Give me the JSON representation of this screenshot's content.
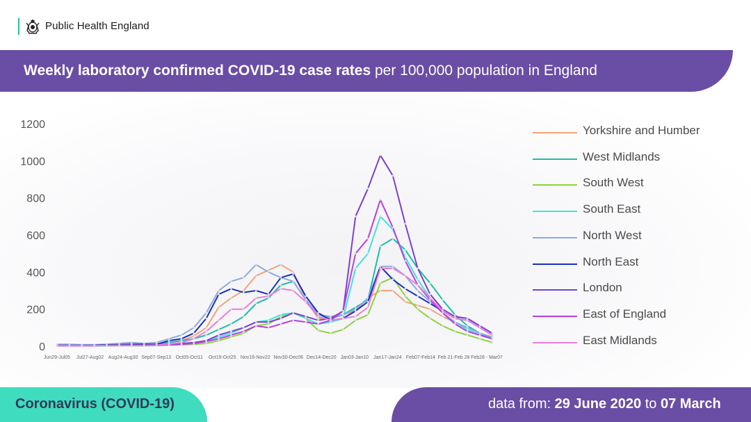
{
  "header": {
    "org_name": "Public Health England",
    "logo_icon": "royal-crest-icon",
    "accent_color": "#2bbfa0"
  },
  "title": {
    "bold": "Weekly laboratory confirmed COVID-19 case rates",
    "normal": "per 100,000 population in England",
    "band_color": "#6a4da5"
  },
  "chart_data": {
    "type": "line",
    "title": "Weekly laboratory confirmed COVID-19 case rates per 100,000 population in England",
    "xlabel": "",
    "ylabel": "",
    "ylim": [
      0,
      1200
    ],
    "y_ticks": [
      "0",
      "200",
      "400",
      "600",
      "800",
      "1000",
      "1200"
    ],
    "x_tick_labels": [
      "Jun29-Jul05",
      "Jul27-Aug02",
      "Aug24-Aug30",
      "Sep07-Sep13",
      "Oct05-Oct11",
      "Oct19-Oct25",
      "Nov16-Nov22",
      "Nov30-Dec06",
      "Dec14-Dec20",
      "Jan03-Jan10",
      "Jan17-Jan24",
      "Feb07-Feb14",
      "Feb 21-Feb 28",
      "Feb28 - Mar07"
    ],
    "grid": false,
    "legend_position": "right",
    "series": [
      {
        "name": "Yorkshire and Humber",
        "color": "#f2a27a",
        "values": [
          5,
          5,
          5,
          5,
          8,
          10,
          10,
          8,
          10,
          20,
          30,
          55,
          100,
          210,
          260,
          300,
          380,
          410,
          440,
          400,
          250,
          150,
          150,
          170,
          190,
          260,
          300,
          300,
          240,
          220,
          200,
          160,
          130,
          90,
          60,
          40
        ]
      },
      {
        "name": "West Midlands",
        "color": "#1abfa8",
        "values": [
          5,
          5,
          5,
          5,
          6,
          8,
          8,
          8,
          10,
          20,
          30,
          40,
          60,
          90,
          120,
          160,
          230,
          260,
          330,
          350,
          250,
          170,
          150,
          170,
          210,
          250,
          540,
          580,
          520,
          420,
          340,
          250,
          170,
          110,
          70,
          40
        ]
      },
      {
        "name": "South West",
        "color": "#8cd43a",
        "values": [
          2,
          2,
          2,
          2,
          3,
          3,
          3,
          3,
          4,
          6,
          8,
          10,
          15,
          30,
          50,
          70,
          110,
          120,
          160,
          180,
          150,
          85,
          70,
          90,
          140,
          170,
          340,
          370,
          270,
          200,
          150,
          110,
          80,
          60,
          40,
          20
        ]
      },
      {
        "name": "South East",
        "color": "#3de3e0",
        "values": [
          2,
          2,
          2,
          3,
          3,
          4,
          4,
          4,
          5,
          7,
          10,
          15,
          30,
          50,
          70,
          100,
          130,
          140,
          170,
          180,
          150,
          120,
          130,
          150,
          420,
          500,
          700,
          630,
          480,
          360,
          260,
          180,
          130,
          90,
          60,
          40
        ]
      },
      {
        "name": "North West",
        "color": "#8ea8e0",
        "values": [
          10,
          10,
          8,
          8,
          10,
          15,
          20,
          15,
          20,
          40,
          60,
          100,
          180,
          300,
          350,
          370,
          440,
          400,
          370,
          350,
          250,
          170,
          160,
          170,
          200,
          260,
          430,
          430,
          380,
          300,
          240,
          180,
          130,
          100,
          70,
          50
        ]
      },
      {
        "name": "North East",
        "color": "#1a2fbf",
        "values": [
          5,
          5,
          5,
          5,
          8,
          8,
          10,
          10,
          10,
          30,
          40,
          70,
          150,
          280,
          310,
          290,
          300,
          280,
          370,
          390,
          270,
          180,
          140,
          150,
          190,
          240,
          430,
          360,
          310,
          270,
          230,
          190,
          150,
          140,
          100,
          60
        ]
      },
      {
        "name": "London",
        "color": "#7b3fd1",
        "values": [
          3,
          3,
          3,
          3,
          4,
          4,
          5,
          5,
          6,
          10,
          15,
          20,
          30,
          60,
          80,
          100,
          130,
          130,
          150,
          180,
          160,
          140,
          150,
          190,
          700,
          850,
          1030,
          920,
          660,
          420,
          280,
          200,
          160,
          150,
          110,
          70
        ]
      },
      {
        "name": "East of England",
        "color": "#b83fe0",
        "values": [
          3,
          3,
          3,
          3,
          4,
          4,
          4,
          4,
          5,
          8,
          10,
          15,
          25,
          40,
          60,
          80,
          110,
          100,
          120,
          140,
          130,
          120,
          140,
          190,
          500,
          580,
          790,
          640,
          460,
          330,
          250,
          180,
          120,
          80,
          60,
          40
        ]
      },
      {
        "name": "East Midlands",
        "color": "#f07ad8",
        "values": [
          3,
          3,
          3,
          3,
          5,
          5,
          5,
          5,
          6,
          12,
          20,
          40,
          80,
          140,
          200,
          200,
          260,
          270,
          310,
          300,
          240,
          160,
          140,
          150,
          160,
          210,
          420,
          420,
          380,
          330,
          260,
          190,
          150,
          140,
          100,
          60
        ]
      }
    ]
  },
  "footer": {
    "left_label": "Coronavirus (COVID-19)",
    "left_color": "#3fdcc0",
    "right_prefix": "data from:",
    "right_start": "29 June 2020",
    "right_to": "to",
    "right_end": "07 March",
    "right_color": "#6a4da5"
  }
}
